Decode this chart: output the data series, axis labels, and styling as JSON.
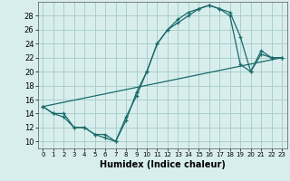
{
  "title": "",
  "xlabel": "Humidex (Indice chaleur)",
  "background_color": "#d8eeed",
  "grid_color": "#aacfcf",
  "line_color": "#1a6b6b",
  "xlim": [
    -0.5,
    23.5
  ],
  "ylim": [
    9,
    30
  ],
  "xticks": [
    0,
    1,
    2,
    3,
    4,
    5,
    6,
    7,
    8,
    9,
    10,
    11,
    12,
    13,
    14,
    15,
    16,
    17,
    18,
    19,
    20,
    21,
    22,
    23
  ],
  "yticks": [
    10,
    12,
    14,
    16,
    18,
    20,
    22,
    24,
    26,
    28
  ],
  "line1_x": [
    0,
    1,
    2,
    3,
    4,
    5,
    6,
    7,
    8,
    9,
    10,
    11,
    12,
    13,
    14,
    15,
    16,
    17,
    18,
    19,
    20,
    21,
    22,
    23
  ],
  "line1_y": [
    15,
    14,
    14,
    12,
    12,
    11,
    11,
    10,
    13,
    17,
    20,
    24,
    26,
    27.5,
    28.5,
    29,
    29.5,
    29,
    28.5,
    25,
    20,
    22.5,
    22,
    22
  ],
  "line2_x": [
    0,
    1,
    2,
    3,
    4,
    5,
    6,
    7,
    8,
    9,
    10,
    11,
    12,
    13,
    14,
    15,
    16,
    17,
    18,
    19,
    20,
    21,
    22,
    23
  ],
  "line2_y": [
    15,
    14,
    13.5,
    12,
    12,
    11,
    10.5,
    10,
    13.5,
    16.5,
    20,
    24,
    26,
    27,
    28,
    29,
    29.5,
    29,
    28,
    21,
    20,
    23,
    22,
    22
  ],
  "line3_x": [
    0,
    23
  ],
  "line3_y": [
    15,
    22
  ]
}
